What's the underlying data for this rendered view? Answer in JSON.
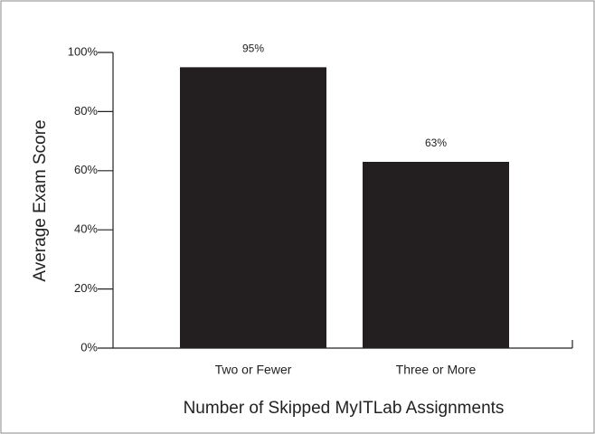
{
  "chart_data": {
    "type": "bar",
    "x_label": "Number of Skipped MyITLab Assignments",
    "y_label": "Average Exam Score",
    "categories": [
      "Two or Fewer",
      "Three or More"
    ],
    "values": [
      95,
      63
    ],
    "value_labels": [
      "95%",
      "63%"
    ],
    "color": "#231f20",
    "ylim": [
      0,
      100
    ],
    "yticks": [
      {
        "value": 0,
        "label": "0%"
      },
      {
        "value": 20,
        "label": "20%"
      },
      {
        "value": 40,
        "label": "40%"
      },
      {
        "value": 60,
        "label": "60%"
      },
      {
        "value": 80,
        "label": "80%"
      },
      {
        "value": 100,
        "label": "100%"
      }
    ],
    "grid": false
  }
}
